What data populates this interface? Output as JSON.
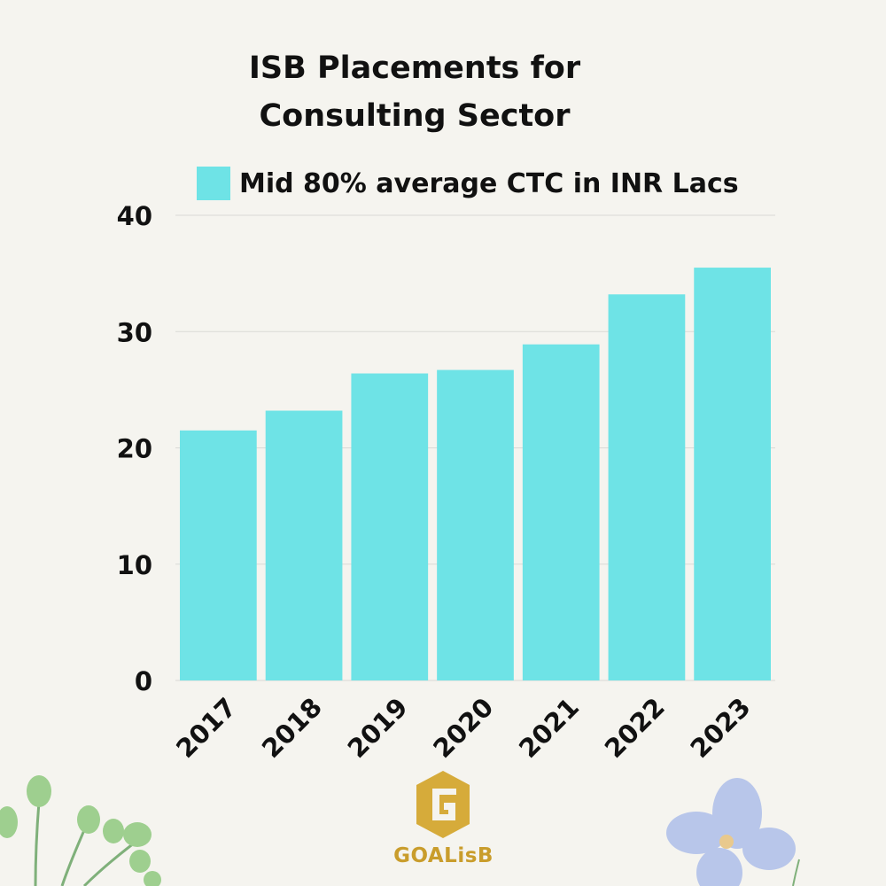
{
  "chart_data": {
    "type": "bar",
    "title_line1": "ISB Placements for",
    "title_line2": "Consulting Sector",
    "categories": [
      "2017",
      "2018",
      "2019",
      "2020",
      "2021",
      "2022",
      "2023"
    ],
    "series": [
      {
        "name": "Mid 80% average CTC in INR Lacs",
        "values": [
          21.5,
          23.2,
          26.4,
          26.7,
          28.9,
          33.2,
          35.5
        ]
      }
    ],
    "ylim": [
      0,
      40
    ],
    "yticks": [
      "0",
      "10",
      "20",
      "30",
      "40"
    ],
    "grid": true,
    "legend_position": "top",
    "bar_color": "#6ee3e6"
  },
  "branding": {
    "logo_text": "GOALisB",
    "logo_color": "#c99d2c"
  }
}
